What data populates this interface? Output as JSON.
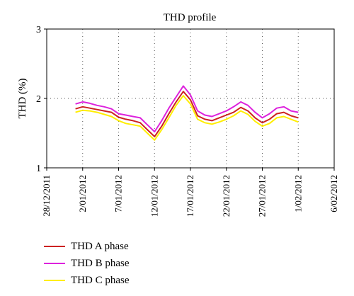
{
  "chart_data": {
    "type": "line",
    "title": "THD profile",
    "xlabel": "",
    "ylabel": "THD (%)",
    "ylim": [
      1,
      3
    ],
    "yticks": [
      "1",
      "2",
      "3"
    ],
    "xlim": [
      "2011-12-28",
      "2012-02-06"
    ],
    "xticks": [
      "28/12/2011",
      "2/01/2012",
      "7/01/2012",
      "12/01/2012",
      "17/01/2012",
      "22/01/2012",
      "27/01/2012",
      "1/02/2012",
      "6/02/2012"
    ],
    "grid": "dotted",
    "legend_placement": "bottom-left",
    "x": [
      "2012-01-01",
      "2012-01-02",
      "2012-01-03",
      "2012-01-04",
      "2012-01-05",
      "2012-01-06",
      "2012-01-07",
      "2012-01-08",
      "2012-01-09",
      "2012-01-10",
      "2012-01-11",
      "2012-01-12",
      "2012-01-13",
      "2012-01-14",
      "2012-01-15",
      "2012-01-16",
      "2012-01-17",
      "2012-01-18",
      "2012-01-19",
      "2012-01-20",
      "2012-01-21",
      "2012-01-22",
      "2012-01-23",
      "2012-01-24",
      "2012-01-25",
      "2012-01-26",
      "2012-01-27",
      "2012-01-28",
      "2012-01-29",
      "2012-01-30",
      "2012-01-31",
      "2012-02-01"
    ],
    "series": [
      {
        "name": "THD A phase",
        "color": "#cc2222",
        "values": [
          1.85,
          1.88,
          1.86,
          1.84,
          1.82,
          1.8,
          1.73,
          1.7,
          1.68,
          1.65,
          1.55,
          1.45,
          1.6,
          1.78,
          1.95,
          2.1,
          1.98,
          1.75,
          1.7,
          1.68,
          1.72,
          1.76,
          1.8,
          1.87,
          1.82,
          1.72,
          1.65,
          1.7,
          1.78,
          1.8,
          1.75,
          1.72
        ]
      },
      {
        "name": "THD B phase",
        "color": "#dd22dd",
        "values": [
          1.92,
          1.95,
          1.93,
          1.9,
          1.88,
          1.85,
          1.78,
          1.76,
          1.74,
          1.72,
          1.62,
          1.52,
          1.68,
          1.86,
          2.02,
          2.18,
          2.05,
          1.82,
          1.76,
          1.74,
          1.78,
          1.82,
          1.88,
          1.95,
          1.9,
          1.8,
          1.72,
          1.78,
          1.86,
          1.88,
          1.82,
          1.8
        ]
      },
      {
        "name": "THD C phase",
        "color": "#ffee00",
        "values": [
          1.8,
          1.83,
          1.82,
          1.8,
          1.77,
          1.74,
          1.68,
          1.64,
          1.62,
          1.6,
          1.5,
          1.4,
          1.55,
          1.72,
          1.9,
          2.04,
          1.92,
          1.7,
          1.65,
          1.63,
          1.66,
          1.7,
          1.75,
          1.82,
          1.77,
          1.67,
          1.6,
          1.64,
          1.72,
          1.74,
          1.7,
          1.66
        ]
      }
    ]
  }
}
